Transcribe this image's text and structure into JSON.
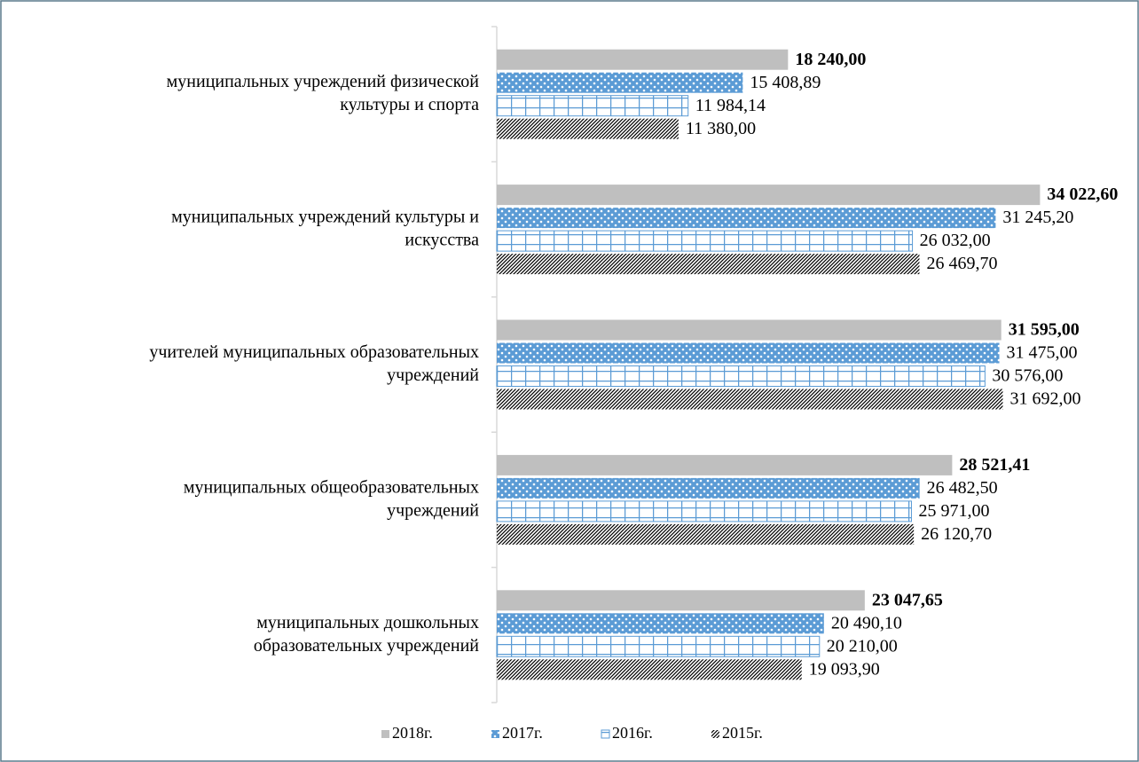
{
  "chart_data": {
    "type": "bar",
    "orientation": "horizontal",
    "categories": [
      "муниципальных учреждений физической\nкультуры  и спорта",
      "муниципальных учреждений культуры и\nискусства",
      "учителей муниципальных образовательных\nучреждений",
      "муниципальных общеобразовательных\nучреждений",
      "муниципальных дошкольных\nобразовательных учреждений"
    ],
    "series": [
      {
        "name": "2018г.",
        "color": "#bfbfbf",
        "pattern": "solid",
        "label_color": "#c00000",
        "label_bold": true,
        "values": [
          18240.0,
          34022.6,
          31595.0,
          28521.41,
          23047.65
        ],
        "value_labels": [
          "18 240,00",
          "34 022,60",
          "31 595,00",
          "28 521,41",
          "23 047,65"
        ]
      },
      {
        "name": "2017г.",
        "color": "#5b9bd5",
        "pattern": "dots",
        "label_color": "#000000",
        "label_bold": false,
        "values": [
          15408.89,
          31245.2,
          31475.0,
          26482.5,
          20490.1
        ],
        "value_labels": [
          "15 408,89",
          "31 245,20",
          "31 475,00",
          "26 482,50",
          "20 490,10"
        ]
      },
      {
        "name": "2016г.",
        "color": "#5b9bd5",
        "pattern": "grid",
        "label_color": "#000000",
        "label_bold": false,
        "values": [
          11984.14,
          26032.0,
          30576.0,
          25971.0,
          20210.0
        ],
        "value_labels": [
          "11 984,14",
          "26 032,00",
          "30 576,00",
          "25 971,00",
          "20 210,00"
        ]
      },
      {
        "name": "2015г.",
        "color": "#000000",
        "pattern": "diagonal",
        "label_color": "#000000",
        "label_bold": false,
        "values": [
          11380.0,
          26469.7,
          31692.0,
          26120.7,
          19093.9
        ],
        "value_labels": [
          "11 380,00",
          "26 469,70",
          "31 692,00",
          "26 120,70",
          "19 093,90"
        ]
      }
    ],
    "xlim": [
      0,
      35000
    ],
    "legend": "bottom"
  }
}
